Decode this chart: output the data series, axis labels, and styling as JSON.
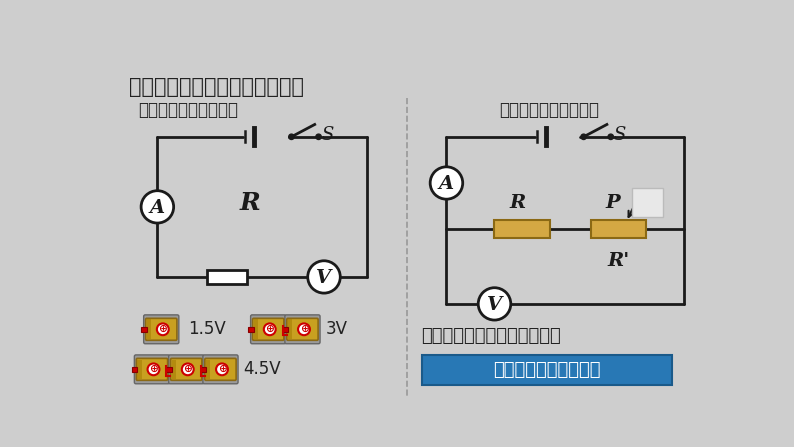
{
  "bg_color": "#cecece",
  "title": "如何改变定値电阔两端的电压？",
  "plan1_title": "方案一：改变电池节数",
  "plan2_title": "方案二：用滑动变阔器",
  "question": "你感觉哪个方案更便于操作？",
  "answer": "方案二：用滑动变阔器",
  "answer_bg": "#2878b5",
  "answer_fg": "#ffffff",
  "divider_color": "#999999",
  "circuit_color": "#1a1a1a",
  "resistor_color": "#d4a843",
  "resistor_border": "#8B6914",
  "text_color": "#222222",
  "battery_body": "#c8a020",
  "battery_cap": "#888888",
  "battery_plus_color": "#cc0000"
}
